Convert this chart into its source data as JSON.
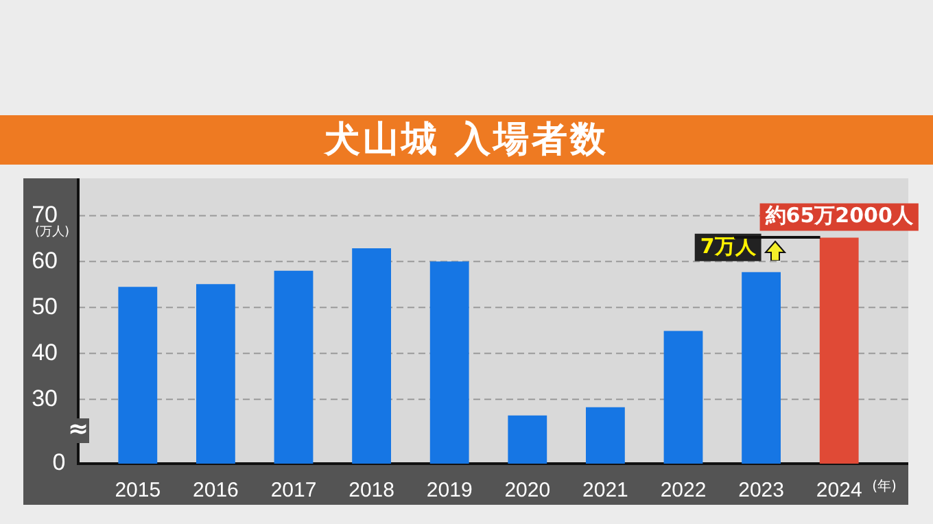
{
  "chart_data": {
    "type": "bar",
    "title": "犬山城 入場者数",
    "ylabel": "(万人)",
    "xlabel": "(年)",
    "categories": [
      "2015",
      "2016",
      "2017",
      "2018",
      "2019",
      "2020",
      "2021",
      "2022",
      "2023",
      "2024"
    ],
    "values": [
      54.5,
      55.1,
      58,
      62.9,
      60,
      26.5,
      28.3,
      44.9,
      57.7,
      65.2
    ],
    "colors": [
      "#1676e4",
      "#1676e4",
      "#1676e4",
      "#1676e4",
      "#1676e4",
      "#1676e4",
      "#1676e4",
      "#1676e4",
      "#1676e4",
      "#e04a36"
    ],
    "ylim": [
      16,
      70
    ],
    "yticks": [
      30,
      40,
      50,
      60,
      70
    ],
    "grid": "y",
    "legend": false,
    "annotations": [
      "0",
      "≈",
      {
        "text": "約65万2000人",
        "x": "2024",
        "y": 65.2
      },
      {
        "text": "7万人",
        "x": "2023",
        "y": 57.7
      }
    ]
  }
}
